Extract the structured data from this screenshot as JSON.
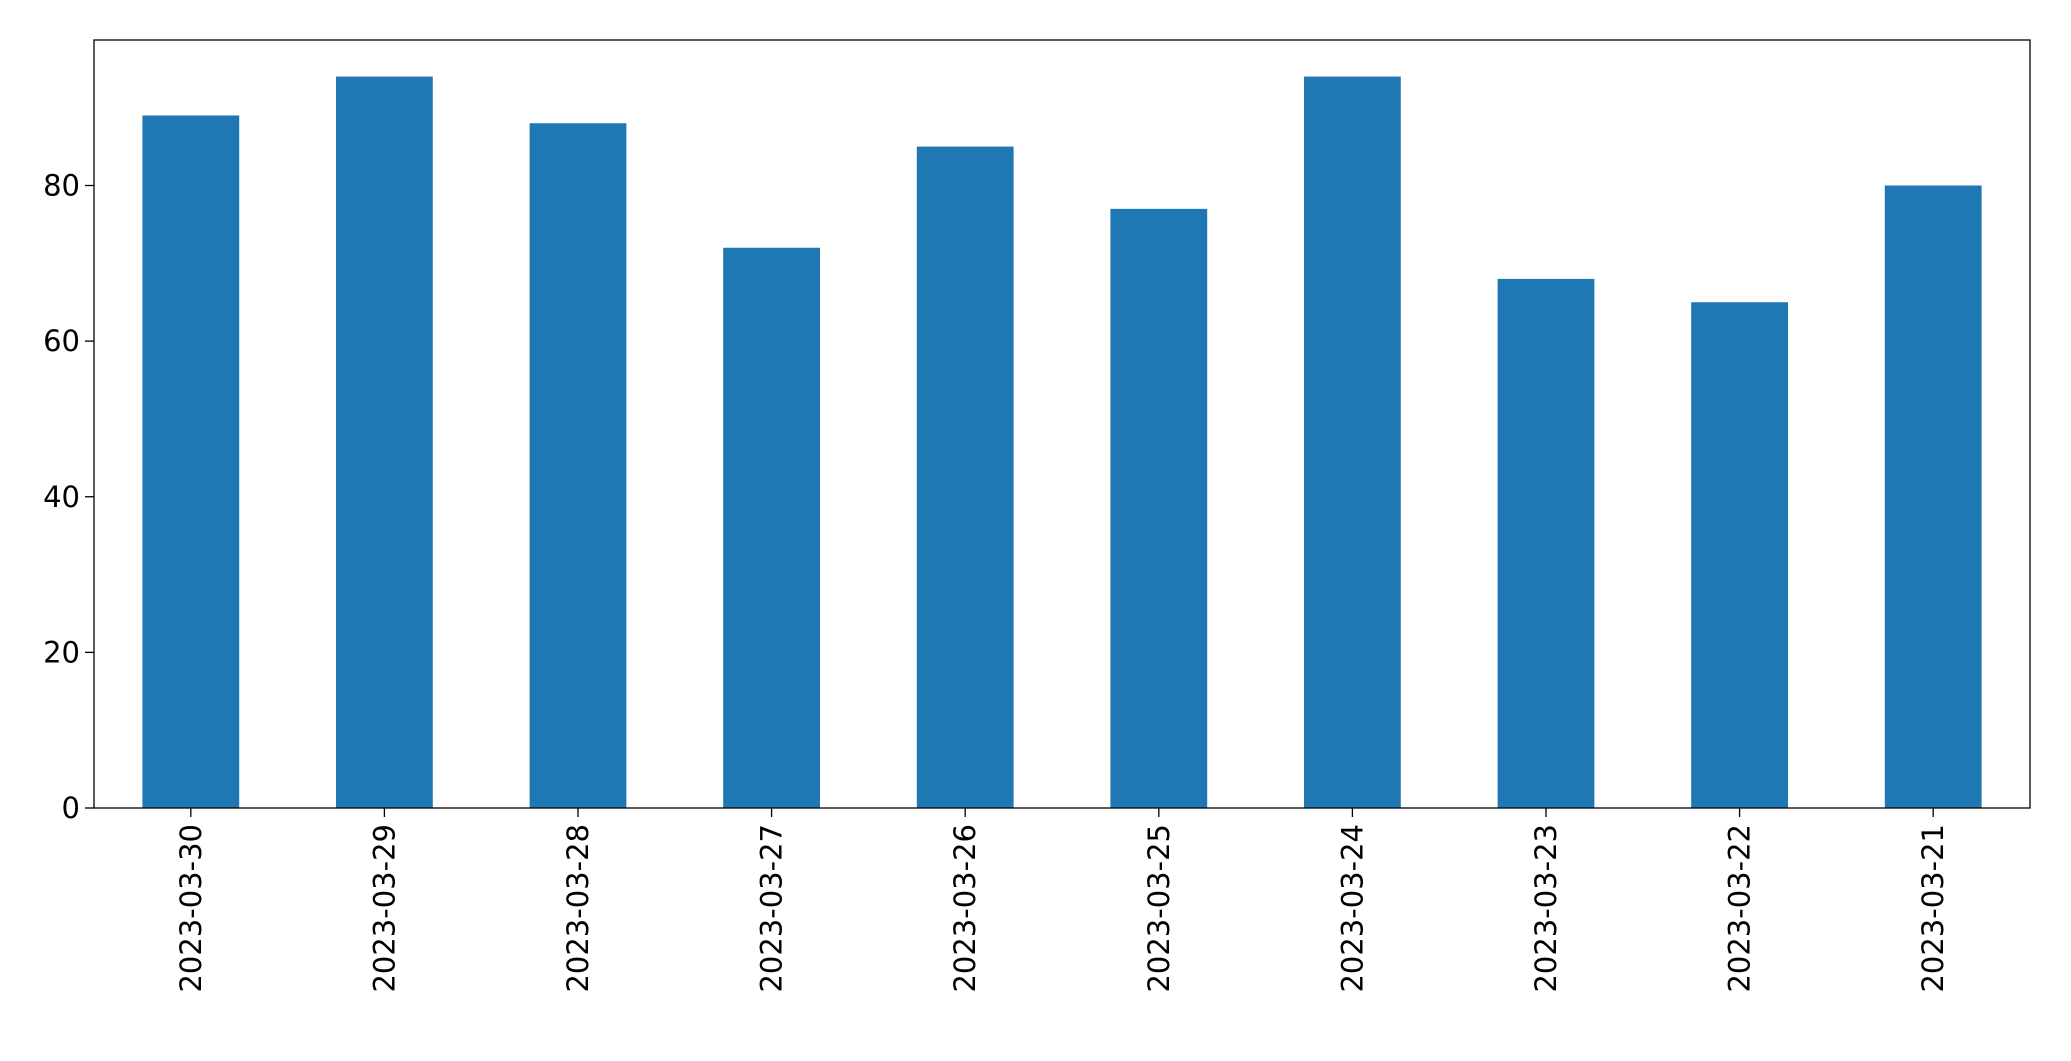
{
  "chart_data": {
    "type": "bar",
    "categories": [
      "2023-03-30",
      "2023-03-29",
      "2023-03-28",
      "2023-03-27",
      "2023-03-26",
      "2023-03-25",
      "2023-03-24",
      "2023-03-23",
      "2023-03-22",
      "2023-03-21"
    ],
    "values": [
      89,
      94,
      88,
      72,
      85,
      77,
      94,
      68,
      65,
      80
    ],
    "color": "#1f77b4",
    "ylim": [
      0,
      98.7
    ],
    "yticks": [
      0,
      20,
      40,
      60,
      80
    ],
    "grid": false
  }
}
